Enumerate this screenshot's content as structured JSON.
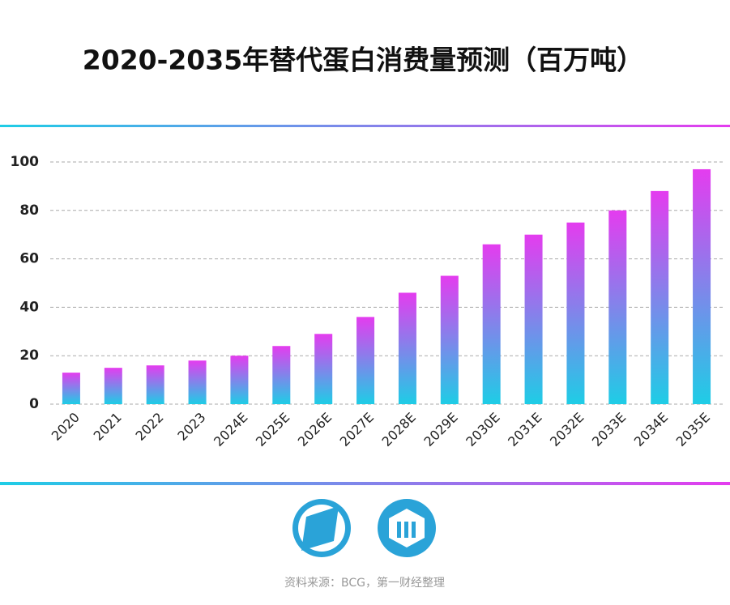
{
  "chart_data": {
    "type": "bar",
    "title": "2020-2035年替代蛋白消费量预测（百万吨）",
    "categories": [
      "2020",
      "2021",
      "2022",
      "2023",
      "2024E",
      "2025E",
      "2026E",
      "2027E",
      "2028E",
      "2029E",
      "2030E",
      "2031E",
      "2032E",
      "2033E",
      "2034E",
      "2035E"
    ],
    "values": [
      13,
      15,
      16,
      18,
      20,
      24,
      29,
      36,
      46,
      53,
      66,
      70,
      75,
      80,
      88,
      97
    ],
    "color": [
      "#1ecde6",
      "#e43cef"
    ],
    "ylim": [
      0,
      100
    ],
    "yticks": [
      0,
      20,
      40,
      60,
      80,
      100
    ],
    "grid": true
  },
  "source": "资料来源：BCG，第一财经整理"
}
